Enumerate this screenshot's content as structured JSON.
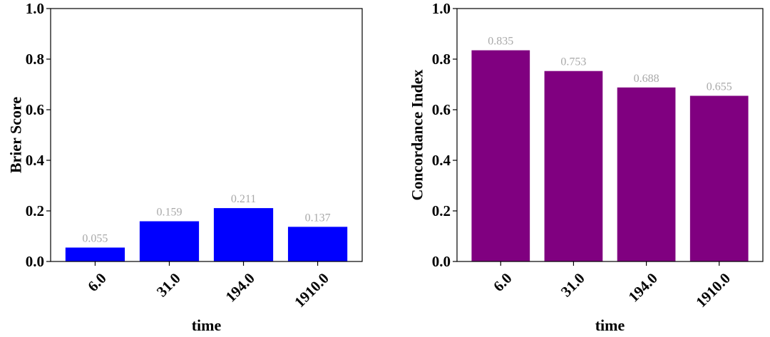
{
  "chart_data": [
    {
      "type": "bar",
      "categories": [
        "6.0",
        "31.0",
        "194.0",
        "1910.0"
      ],
      "values": [
        0.055,
        0.159,
        0.211,
        0.137
      ],
      "data_labels": [
        "0.055",
        "0.159",
        "0.211",
        "0.137"
      ],
      "xlabel": "time",
      "ylabel": "Brier Score",
      "ylim": [
        0,
        1.0
      ],
      "yticks": [
        "0.0",
        "0.2",
        "0.4",
        "0.6",
        "0.8",
        "1.0"
      ],
      "color": "#0000ff",
      "grid": false
    },
    {
      "type": "bar",
      "categories": [
        "6.0",
        "31.0",
        "194.0",
        "1910.0"
      ],
      "values": [
        0.835,
        0.753,
        0.688,
        0.655
      ],
      "data_labels": [
        "0.835",
        "0.753",
        "0.688",
        "0.655"
      ],
      "xlabel": "time",
      "ylabel": "Concordance Index",
      "ylim": [
        0,
        1.0
      ],
      "yticks": [
        "0.0",
        "0.2",
        "0.4",
        "0.6",
        "0.8",
        "1.0"
      ],
      "color": "#800080",
      "grid": false
    }
  ]
}
